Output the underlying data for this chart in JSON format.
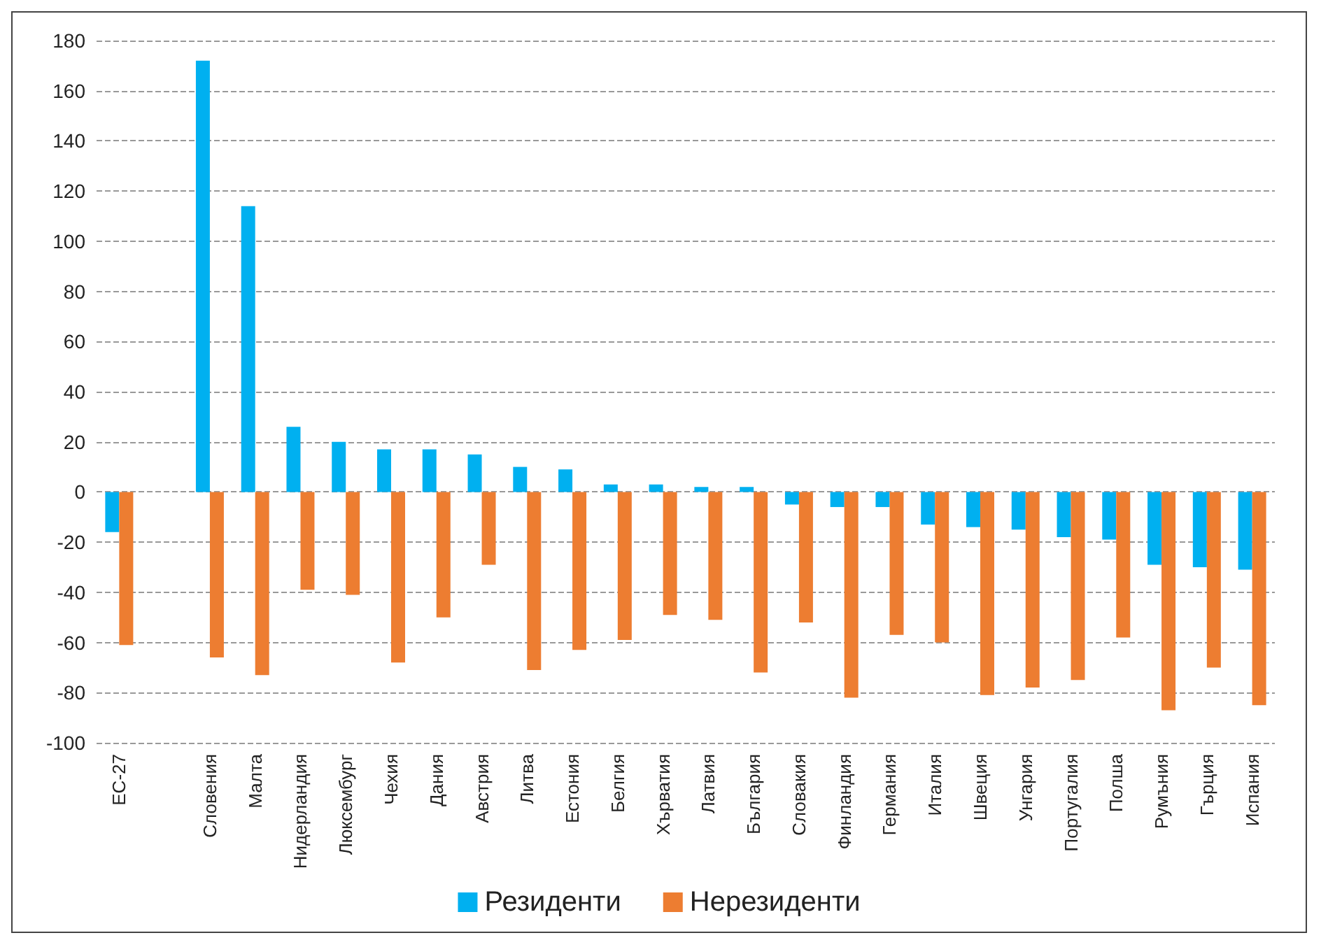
{
  "chart_data": {
    "type": "bar",
    "categories": [
      "ЕС-27",
      null,
      "Словения",
      "Малта",
      "Нидерландия",
      "Люксембург",
      "Чехия",
      "Дания",
      "Австрия",
      "Литва",
      "Естония",
      "Белгия",
      "Хърватия",
      "Латвия",
      "България",
      "Словакия",
      "Финландия",
      "Германия",
      "Италия",
      "Швеция",
      "Унгария",
      "Португалия",
      "Полша",
      "Румъния",
      "Гърция",
      "Испания"
    ],
    "series": [
      {
        "name": "Резиденти",
        "color": "#00b0f0",
        "values": [
          -16,
          null,
          172,
          114,
          26,
          20,
          17,
          17,
          15,
          10,
          9,
          3,
          3,
          2,
          2,
          -5,
          -6,
          -6,
          -13,
          -14,
          -15,
          -18,
          -19,
          -29,
          -30,
          -31
        ]
      },
      {
        "name": "Нерезиденти",
        "color": "#ed7d31",
        "values": [
          -61,
          null,
          -66,
          -73,
          -39,
          -41,
          -68,
          -50,
          -29,
          -71,
          -63,
          -59,
          -49,
          -51,
          -72,
          -52,
          -82,
          -57,
          -60,
          -81,
          -78,
          -75,
          -58,
          -87,
          -70,
          -85
        ]
      }
    ],
    "ylim": [
      -100,
      180
    ],
    "yticks": [
      -100,
      -80,
      -60,
      -40,
      -20,
      0,
      20,
      40,
      60,
      80,
      100,
      120,
      140,
      160,
      180
    ],
    "grid": "y",
    "legend": "bottom"
  }
}
